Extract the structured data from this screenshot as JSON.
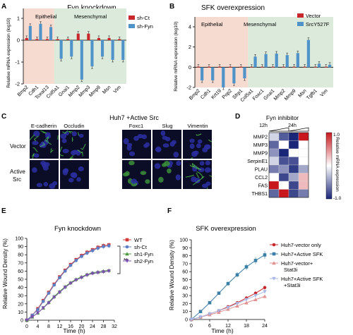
{
  "panels": {
    "A": {
      "letter": "A",
      "title": "Fyn knockdown",
      "region_left": "Epithelial",
      "region_right": "Mesenchymal",
      "ylabel": "Relative mRNA expression (log10)",
      "legend": [
        "sh-Ct",
        "sh-Fyn"
      ],
      "colors": {
        "red": "#c8282b",
        "blue": "#4f93c9",
        "epi_bg": "#f6dbd1",
        "mes_bg": "#dbeadb"
      }
    },
    "B": {
      "letter": "B",
      "title": "SFK overexpression",
      "region_left": "Epithelial",
      "region_right": "Mesenchymal",
      "ylabel": "Relative mRNA expression (log10)",
      "legend": [
        "Vector",
        "SrcY527F"
      ]
    },
    "C": {
      "letter": "C",
      "title": "Huh7 +Active Src",
      "columns": [
        "E-cadherin",
        "Occludin",
        "Foxc1",
        "Slug",
        "Vimentin"
      ],
      "rows": [
        "Vector",
        "Active Src"
      ]
    },
    "D": {
      "letter": "D",
      "title": "Fyn inhibitor",
      "time_labels": [
        "12h",
        "24h"
      ],
      "genes": [
        "MMP2",
        "MMP3",
        "MMP9",
        "SerpinE1",
        "PLAU",
        "CCL2",
        "FAS",
        "THBS1"
      ],
      "colorbar_label": "Relative mRNA expression",
      "colorbar_max": "1.0",
      "colorbar_min": "-1.0"
    },
    "E": {
      "letter": "E",
      "title": "Fyn knockdown",
      "ylabel": "Relative Wound Density (%)",
      "xlabel": "Time (h)",
      "significance": "**"
    },
    "F": {
      "letter": "F",
      "title": "SFK overexpression",
      "ylabel": "Relative Wound Density (%)",
      "xlabel": "Time (h)"
    }
  },
  "chart_data": [
    {
      "panel": "A",
      "type": "bar",
      "title": "Fyn knockdown",
      "ylabel": "Relative mRNA expression (log10)",
      "categories": [
        "Bmp2",
        "Cdh1",
        "Tceal13",
        "Col5a1",
        "Gnai1",
        "Mmp2",
        "Mmp3",
        "Mmp9",
        "Msn",
        "Vim"
      ],
      "epithelial_count": 3,
      "series": [
        {
          "name": "sh-Ct",
          "color": "#c8282b",
          "values": [
            0.1,
            0.05,
            0.05,
            0.05,
            0.05,
            0.3,
            0.3,
            0.1,
            0.1,
            0.05
          ]
        },
        {
          "name": "sh-Fyn",
          "color": "#4f93c9",
          "values": [
            0.65,
            0.75,
            0.6,
            -0.85,
            -0.75,
            -1.8,
            -1.2,
            -0.75,
            -0.9,
            -0.9
          ]
        }
      ],
      "ylim": [
        -2,
        1
      ],
      "yticks": [
        -2,
        -1,
        0,
        1
      ]
    },
    {
      "panel": "B",
      "type": "bar",
      "title": "SFK overexpression",
      "ylabel": "Relative mRNA expression (log10)",
      "categories": [
        "Bmp2",
        "Cdh1",
        "Krt19",
        "Pop2",
        "Sfrp1",
        "Col5a1",
        "Foxc1",
        "Gnai1",
        "Mmp2",
        "Mmp9",
        "Msn",
        "Tgfb1",
        "Vim"
      ],
      "epithelial_count": 5,
      "series": [
        {
          "name": "Vector",
          "color": "#c8282b",
          "values": [
            0.05,
            0.05,
            0.05,
            0.05,
            0.05,
            0.05,
            0.05,
            0.05,
            0.05,
            0.05,
            0.05,
            0.05,
            0.05
          ]
        },
        {
          "name": "SrcY527F",
          "color": "#4f93c9",
          "values": [
            -1.3,
            -1.3,
            -2.0,
            -1.6,
            -1.1,
            1.05,
            1.3,
            1.35,
            1.2,
            1.4,
            2.7,
            0.35,
            0.25
          ]
        }
      ],
      "ylim": [
        -2,
        4
      ],
      "yticks": [
        -2,
        0,
        2,
        4
      ]
    },
    {
      "panel": "D",
      "type": "heatmap",
      "title": "Fyn inhibitor",
      "rows": [
        "MMP2",
        "MMP3",
        "MMP9",
        "SerpinE1",
        "PLAU",
        "CCL2",
        "FAS",
        "THBS1"
      ],
      "col_groups": [
        "12h",
        "24h"
      ],
      "values": [
        [
          -0.2,
          -0.75,
          -1.0,
          1.0
        ],
        [
          -0.7,
          0.0,
          -1.0,
          0.0
        ],
        [
          -0.5,
          -1.0,
          0.0,
          0.0
        ],
        [
          -0.2,
          -0.8,
          -0.8,
          0.0
        ],
        [
          -0.6,
          -0.5,
          -0.9,
          -0.4
        ],
        [
          0.0,
          -0.85,
          -0.4,
          0.3
        ],
        [
          1.0,
          0.0,
          -0.85,
          0.3
        ],
        [
          -0.7,
          1.0,
          -0.85,
          -0.6
        ]
      ],
      "vmin": -1.0,
      "vmax": 1.0
    },
    {
      "panel": "E",
      "type": "line",
      "title": "Fyn knockdown",
      "xlabel": "Time (h)",
      "ylabel": "Relative Wound Density (%)",
      "xlim": [
        0,
        32
      ],
      "ylim": [
        0,
        100
      ],
      "xticks": [
        0,
        4,
        8,
        12,
        16,
        20,
        24,
        28,
        32
      ],
      "yticks": [
        0,
        10,
        20,
        30,
        40,
        50,
        60,
        70,
        80,
        90,
        100
      ],
      "x": [
        0,
        2,
        4,
        6,
        8,
        10,
        12,
        14,
        16,
        18,
        20,
        22,
        24,
        26,
        28,
        30
      ],
      "series": [
        {
          "name": "WT",
          "color": "#d23a3a",
          "marker": "square",
          "values": [
            0,
            6,
            14,
            24,
            34,
            44,
            53,
            61,
            68,
            74,
            79,
            83,
            86,
            89,
            91,
            92
          ]
        },
        {
          "name": "sh-Ct",
          "color": "#5b7fc7",
          "marker": "circle",
          "values": [
            0,
            6,
            13,
            23,
            33,
            43,
            52,
            60,
            67,
            73,
            78,
            82,
            85,
            88,
            90,
            91
          ]
        },
        {
          "name": "sh1-Fyn",
          "color": "#4a9a3a",
          "marker": "triangle",
          "values": [
            0,
            4,
            9,
            15,
            22,
            29,
            35,
            41,
            46,
            50,
            53,
            56,
            58,
            59,
            60,
            61
          ]
        },
        {
          "name": "sh2-Fyn",
          "color": "#7b4fb0",
          "marker": "triangle-down",
          "values": [
            0,
            4,
            9,
            15,
            21,
            28,
            34,
            40,
            45,
            49,
            52,
            55,
            57,
            58,
            59,
            60
          ]
        }
      ]
    },
    {
      "panel": "F",
      "type": "line",
      "title": "SFK overexpression",
      "xlabel": "Time (h)",
      "ylabel": "Relative Wound Density (%)",
      "xlim": [
        0,
        24
      ],
      "ylim": [
        0,
        100
      ],
      "xticks": [
        0,
        6,
        12,
        18,
        24
      ],
      "yticks": [
        0,
        10,
        20,
        30,
        40,
        50,
        60,
        70,
        80,
        90,
        100
      ],
      "x": [
        0,
        3,
        6,
        9,
        12,
        15,
        18,
        21,
        24
      ],
      "series": [
        {
          "name": "Huh7-vector only",
          "color": "#c8282b",
          "marker": "circle",
          "values": [
            0,
            3,
            7,
            11,
            16,
            21,
            27,
            33,
            40
          ]
        },
        {
          "name": "Huh7+Active SFK",
          "color": "#3a7fa5",
          "marker": "square",
          "values": [
            0,
            10,
            21,
            33,
            45,
            56,
            66,
            74,
            81
          ]
        },
        {
          "name": "Huh7-vector+ Stat3i",
          "color": "#e0908f",
          "marker": "triangle",
          "values": [
            0,
            3,
            6,
            9,
            13,
            17,
            21,
            25,
            29
          ]
        },
        {
          "name": "Huh7+Active SFK +Stat3i",
          "color": "#a9b8e6",
          "marker": "triangle-down",
          "values": [
            0,
            3,
            7,
            11,
            15,
            20,
            25,
            30,
            35
          ]
        }
      ]
    }
  ]
}
